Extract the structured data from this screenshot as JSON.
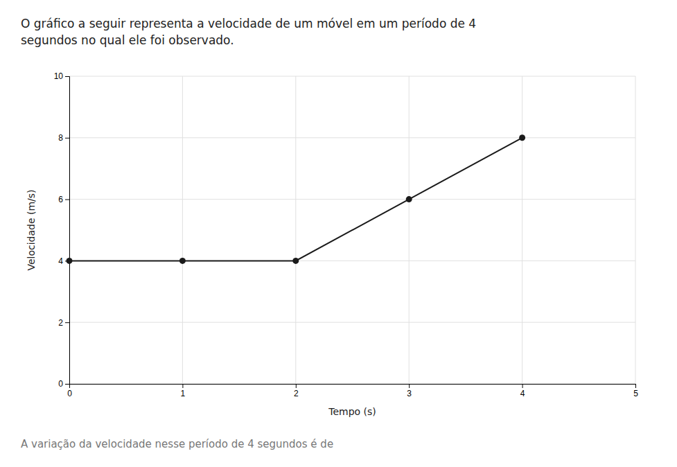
{
  "chart_data": {
    "type": "line",
    "title": "O gráfico a seguir representa a velocidade de um móvel em um período de 4\nsegundos no qual ele foi observado.",
    "x_label": "Tempo (s)",
    "y_label": "Velocidade (m/s)",
    "x": [
      0,
      1,
      2,
      3,
      4
    ],
    "values": [
      4,
      4,
      4,
      6,
      8
    ],
    "color": "#1a1a1a",
    "marker": "circle",
    "xlim": [
      0,
      5
    ],
    "ylim": [
      0,
      10
    ],
    "xticks": [
      0,
      1,
      2,
      3,
      4,
      5
    ],
    "yticks": [
      0,
      2,
      4,
      6,
      8,
      10
    ],
    "grid": true,
    "annotations": [
      "A variação da velocidade nesse período de 4 segundos é de"
    ]
  }
}
